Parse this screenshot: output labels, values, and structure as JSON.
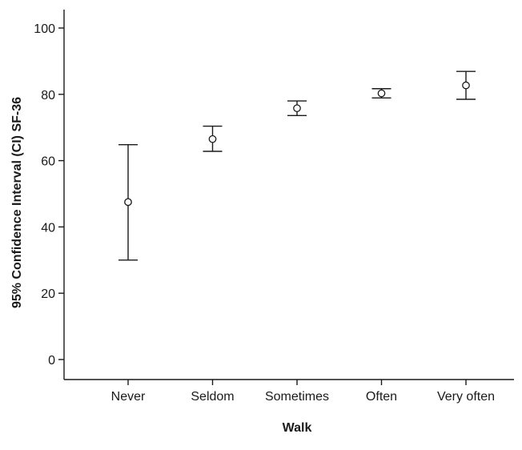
{
  "chart_data": {
    "type": "scatter",
    "title": "",
    "xlabel": "Walk",
    "ylabel": "95% Confidence Interval (CI) SF-36",
    "categories": [
      "Never",
      "Seldom",
      "Sometimes",
      "Often",
      "Very often"
    ],
    "series": [
      {
        "mean": [
          47.5,
          66.5,
          75.8,
          80.3,
          82.7
        ],
        "ci_lower": [
          30.0,
          62.8,
          73.6,
          78.9,
          78.5
        ],
        "ci_upper": [
          64.8,
          70.4,
          78.0,
          81.7,
          86.9
        ]
      }
    ],
    "ylim": [
      0,
      100
    ],
    "yticks": [
      0,
      20,
      40,
      60,
      80,
      100
    ],
    "yticklabels": [
      "0",
      "20",
      "40",
      "60",
      "80",
      "100"
    ],
    "grid": false,
    "marker": "open-circle",
    "error_bars": "95% CI",
    "colors": {
      "ink": "#1a1a1a",
      "background": "#ffffff"
    }
  }
}
